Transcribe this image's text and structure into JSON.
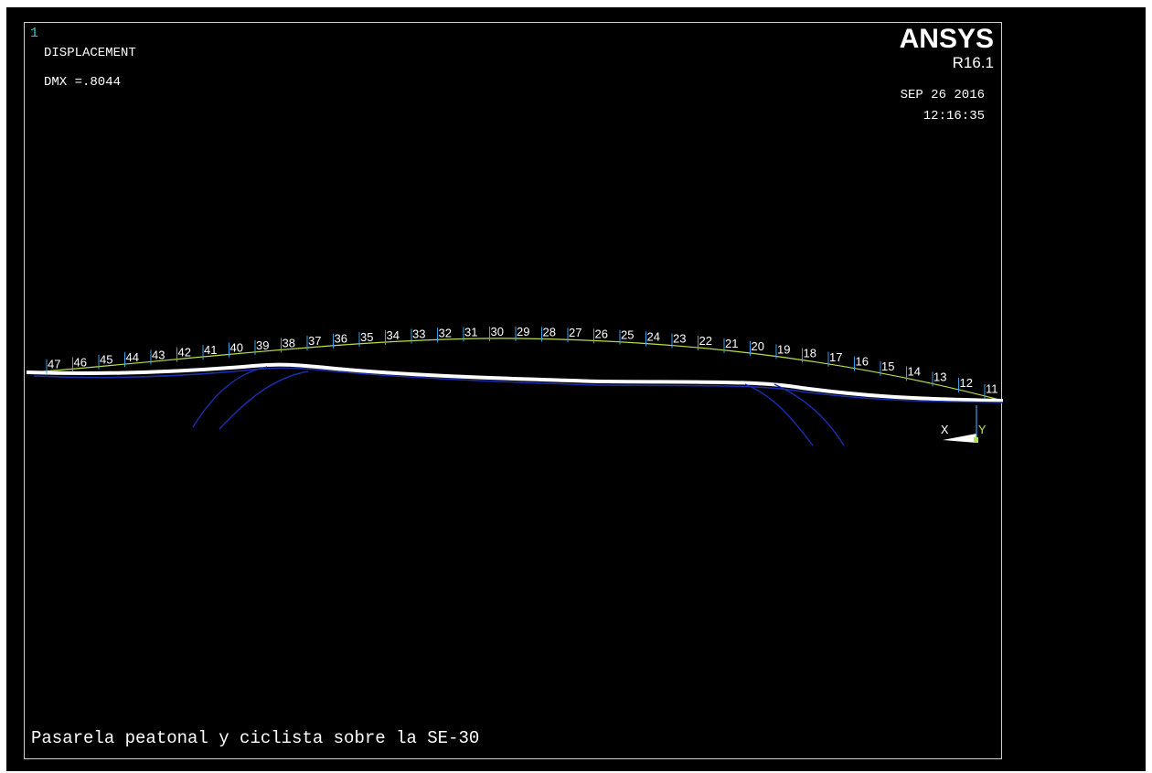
{
  "window": {
    "number": "1",
    "plot_title": "DISPLACEMENT",
    "dmx": "DMX =.8044"
  },
  "brand": {
    "name": "ANSYS",
    "version": "R16.1"
  },
  "timestamp": {
    "date": "SEP 26 2016",
    "time": "12:16:35"
  },
  "caption": "Pasarela peatonal y ciclista sobre la SE-30",
  "nodes": [
    "47",
    "46",
    "45",
    "44",
    "43",
    "42",
    "41",
    "40",
    "39",
    "38",
    "37",
    "36",
    "35",
    "34",
    "33",
    "32",
    "31",
    "30",
    "29",
    "28",
    "27",
    "26",
    "25",
    "24",
    "23",
    "22",
    "21",
    "20",
    "19",
    "18",
    "17",
    "16",
    "15",
    "14",
    "13",
    "12",
    "11"
  ],
  "triad": {
    "x_label": "X",
    "y_label": "Y"
  },
  "colors": {
    "background": "#000000",
    "frame": "#cfcfcf",
    "undeformed_shape": "#b4e04a",
    "deformed_shape": "#ffffff",
    "structure_lines": "#1a2fb0",
    "node_ticks": "#3aa0e8",
    "window_number": "#34c6c6",
    "triad_y": "#b4e04a"
  }
}
